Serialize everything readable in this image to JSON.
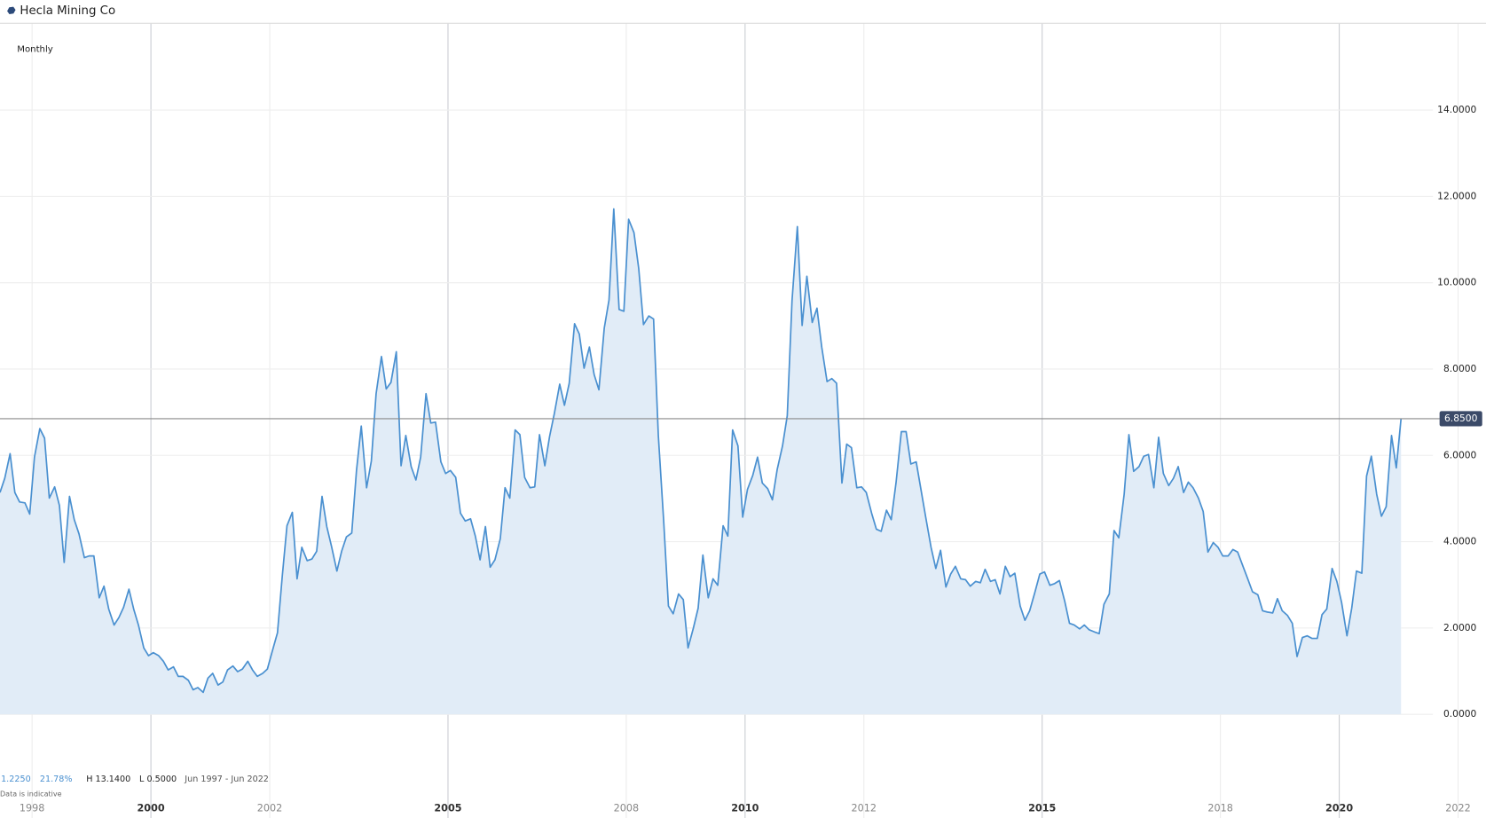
{
  "chart_data": {
    "type": "area",
    "title": "Hecla Mining Co",
    "interval": "Monthly",
    "color": "#4a90d0",
    "fill_color": "#e1ecf7",
    "grid": true,
    "x": [
      1997.46,
      1997.54,
      1997.63,
      1997.71,
      1997.79,
      1997.88,
      1997.96,
      1998.04,
      1998.13,
      1998.21,
      1998.29,
      1998.38,
      1998.46,
      1998.54,
      1998.63,
      1998.71,
      1998.79,
      1998.88,
      1998.96,
      1999.04,
      1999.13,
      1999.21,
      1999.29,
      1999.38,
      1999.46,
      1999.54,
      1999.63,
      1999.71,
      1999.79,
      1999.88,
      1999.96,
      2000.04,
      2000.13,
      2000.21,
      2000.29,
      2000.38,
      2000.46,
      2000.54,
      2000.63,
      2000.71,
      2000.79,
      2000.88,
      2000.96,
      2001.04,
      2001.13,
      2001.21,
      2001.29,
      2001.38,
      2001.46,
      2001.54,
      2001.63,
      2001.71,
      2001.79,
      2001.88,
      2001.96,
      2002.04,
      2002.13,
      2002.21,
      2002.29,
      2002.38,
      2002.46,
      2002.54,
      2002.63,
      2002.71,
      2002.79,
      2002.88,
      2002.96,
      2003.04,
      2003.13,
      2003.21,
      2003.29,
      2003.38,
      2003.46,
      2003.54,
      2003.63,
      2003.71,
      2003.79,
      2003.88,
      2003.96,
      2004.04,
      2004.13,
      2004.21,
      2004.29,
      2004.38,
      2004.46,
      2004.54,
      2004.63,
      2004.71,
      2004.79,
      2004.88,
      2004.96,
      2005.04,
      2005.13,
      2005.21,
      2005.29,
      2005.38,
      2005.46,
      2005.54,
      2005.63,
      2005.71,
      2005.79,
      2005.88,
      2005.96,
      2006.04,
      2006.13,
      2006.21,
      2006.29,
      2006.38,
      2006.46,
      2006.54,
      2006.63,
      2006.71,
      2006.79,
      2006.88,
      2006.96,
      2007.04,
      2007.13,
      2007.21,
      2007.29,
      2007.38,
      2007.46,
      2007.54,
      2007.63,
      2007.71,
      2007.79,
      2007.88,
      2007.96,
      2008.04,
      2008.13,
      2008.21,
      2008.29,
      2008.38,
      2008.46,
      2008.54,
      2008.63,
      2008.71,
      2008.79,
      2008.88,
      2008.96,
      2009.04,
      2009.13,
      2009.21,
      2009.29,
      2009.38,
      2009.46,
      2009.54,
      2009.63,
      2009.71,
      2009.79,
      2009.88,
      2009.96,
      2010.04,
      2010.13,
      2010.21,
      2010.29,
      2010.38,
      2010.46,
      2010.54,
      2010.63,
      2010.71,
      2010.79,
      2010.88,
      2010.96,
      2011.04,
      2011.13,
      2011.21,
      2011.29,
      2011.38,
      2011.46,
      2011.54,
      2011.63,
      2011.71,
      2011.79,
      2011.88,
      2011.96,
      2012.04,
      2012.13,
      2012.21,
      2012.29,
      2012.38,
      2012.46,
      2012.54,
      2012.63,
      2012.71,
      2012.79,
      2012.88,
      2012.96,
      2013.04,
      2013.13,
      2013.21,
      2013.29,
      2013.38,
      2013.46,
      2013.54,
      2013.63,
      2013.71,
      2013.79,
      2013.88,
      2013.96,
      2014.04,
      2014.13,
      2014.21,
      2014.29,
      2014.38,
      2014.46,
      2014.54,
      2014.63,
      2014.71,
      2014.79,
      2014.88,
      2014.96,
      2015.04,
      2015.13,
      2015.21,
      2015.29,
      2015.38,
      2015.46,
      2015.54,
      2015.63,
      2015.71,
      2015.79,
      2015.88,
      2015.96,
      2016.04,
      2016.13,
      2016.21,
      2016.29,
      2016.38,
      2016.46,
      2016.54,
      2016.63,
      2016.71,
      2016.79,
      2016.88,
      2016.96,
      2017.04,
      2017.13,
      2017.21,
      2017.29,
      2017.38,
      2017.46,
      2017.54,
      2017.63,
      2017.71,
      2017.79,
      2017.88,
      2017.96,
      2018.04,
      2018.13,
      2018.21,
      2018.29,
      2018.38,
      2018.46,
      2018.54,
      2018.63,
      2018.71,
      2018.79,
      2018.88,
      2018.96,
      2019.04,
      2019.13,
      2019.21,
      2019.29,
      2019.38,
      2019.46,
      2019.54,
      2019.63,
      2019.71,
      2019.79,
      2019.88,
      2019.96,
      2020.04,
      2020.13,
      2020.21,
      2020.29,
      2020.38,
      2020.46,
      2020.54,
      2020.63,
      2020.71,
      2020.79,
      2020.88,
      2020.96,
      2021.04
    ],
    "values": [
      5.14,
      5.47,
      6.04,
      5.14,
      4.92,
      4.9,
      4.64,
      5.96,
      6.62,
      6.4,
      5.01,
      5.27,
      4.84,
      3.52,
      5.05,
      4.51,
      4.18,
      3.63,
      3.67,
      3.67,
      2.7,
      2.97,
      2.44,
      2.07,
      2.24,
      2.48,
      2.9,
      2.44,
      2.07,
      1.54,
      1.36,
      1.43,
      1.36,
      1.23,
      1.03,
      1.1,
      0.88,
      0.88,
      0.79,
      0.57,
      0.62,
      0.51,
      0.84,
      0.95,
      0.68,
      0.75,
      1.03,
      1.12,
      0.99,
      1.05,
      1.23,
      1.03,
      0.88,
      0.95,
      1.05,
      1.45,
      1.89,
      3.19,
      4.37,
      4.68,
      3.14,
      3.87,
      3.56,
      3.6,
      3.78,
      5.05,
      4.35,
      3.89,
      3.32,
      3.78,
      4.11,
      4.2,
      5.65,
      6.68,
      5.25,
      5.87,
      7.43,
      8.29,
      7.54,
      7.69,
      8.4,
      5.76,
      6.46,
      5.74,
      5.43,
      5.96,
      7.43,
      6.75,
      6.77,
      5.85,
      5.58,
      5.65,
      5.49,
      4.66,
      4.48,
      4.53,
      4.13,
      3.58,
      4.35,
      3.41,
      3.58,
      4.07,
      5.25,
      5.01,
      6.59,
      6.48,
      5.49,
      5.25,
      5.27,
      6.48,
      5.76,
      6.44,
      6.97,
      7.65,
      7.16,
      7.67,
      9.05,
      8.81,
      8.02,
      8.51,
      7.87,
      7.52,
      8.95,
      9.6,
      11.71,
      9.38,
      9.34,
      11.47,
      11.16,
      10.33,
      9.03,
      9.23,
      9.16,
      6.46,
      4.48,
      2.51,
      2.33,
      2.79,
      2.66,
      1.54,
      2.0,
      2.46,
      3.69,
      2.7,
      3.14,
      2.99,
      4.37,
      4.13,
      6.59,
      6.22,
      4.57,
      5.21,
      5.54,
      5.96,
      5.36,
      5.23,
      4.97,
      5.67,
      6.22,
      6.92,
      9.58,
      11.3,
      9.01,
      10.15,
      9.08,
      9.41,
      8.51,
      7.71,
      7.78,
      7.67,
      5.36,
      6.26,
      6.18,
      5.25,
      5.27,
      5.14,
      4.66,
      4.29,
      4.24,
      4.73,
      4.51,
      5.36,
      6.55,
      6.55,
      5.8,
      5.85,
      5.21,
      4.57,
      3.87,
      3.38,
      3.8,
      2.95,
      3.25,
      3.43,
      3.14,
      3.12,
      2.97,
      3.08,
      3.05,
      3.36,
      3.08,
      3.12,
      2.79,
      3.43,
      3.19,
      3.27,
      2.51,
      2.18,
      2.4,
      2.84,
      3.25,
      3.3,
      2.99,
      3.03,
      3.1,
      2.62,
      2.11,
      2.07,
      1.98,
      2.07,
      1.96,
      1.91,
      1.87,
      2.55,
      2.79,
      4.26,
      4.09,
      5.1,
      6.48,
      5.63,
      5.74,
      5.98,
      6.02,
      5.25,
      6.42,
      5.58,
      5.3,
      5.47,
      5.74,
      5.14,
      5.38,
      5.25,
      5.01,
      4.7,
      3.76,
      3.98,
      3.87,
      3.67,
      3.67,
      3.82,
      3.76,
      3.43,
      3.14,
      2.84,
      2.77,
      2.4,
      2.37,
      2.35,
      2.68,
      2.4,
      2.29,
      2.11,
      1.34,
      1.78,
      1.82,
      1.76,
      1.76,
      2.31,
      2.44,
      3.38,
      3.08,
      2.59,
      1.82,
      2.46,
      3.32,
      3.27,
      5.52,
      5.98,
      5.1,
      4.59,
      4.81,
      6.46,
      5.71,
      6.85
    ],
    "xlim": [
      1997.46,
      2022.47
    ],
    "xticks": [
      1998,
      2000,
      2002,
      2005,
      2008,
      2010,
      2012,
      2015,
      2018,
      2020,
      2022
    ],
    "ylim": [
      -2.4,
      16
    ],
    "yticks": [
      {
        "value": 0,
        "label": "0.0000"
      },
      {
        "value": 2,
        "label": "2.0000"
      },
      {
        "value": 4,
        "label": "4.0000"
      },
      {
        "value": 6,
        "label": "6.0000"
      },
      {
        "value": 8,
        "label": "8.0000"
      },
      {
        "value": 10,
        "label": "10.0000"
      },
      {
        "value": 12,
        "label": "12.0000"
      },
      {
        "value": 14,
        "label": "14.0000"
      }
    ],
    "last_value": {
      "value": 6.85,
      "label": "6.8500"
    },
    "stats": {
      "change": "1.2250",
      "change_pct": "21.78%",
      "high": "H 13.1400",
      "low": "L 0.5000",
      "range": "Jun 1997 - Jun 2022",
      "note": "Data is indicative"
    }
  }
}
